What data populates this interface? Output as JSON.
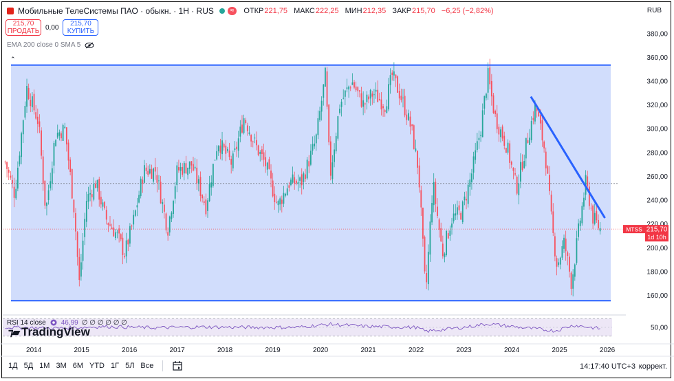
{
  "header": {
    "symbol_title": "Мобильные ТелеСистемы ПАО · обыкн. · 1Н · RUS",
    "live_badge": "≈",
    "ohlc": {
      "open_label": "ОТКР",
      "open": "221,75",
      "high_label": "МАКС",
      "high": "222,25",
      "low_label": "МИН",
      "low": "212,35",
      "close_label": "ЗАКР",
      "close": "215,70",
      "change": "−6,25 (−2,82%)"
    },
    "currency": "RUB"
  },
  "trade": {
    "sell_price": "215,70",
    "sell_label": "ПРОДАТЬ",
    "spread": "0,00",
    "buy_price": "215,70",
    "buy_label": "КУПИТЬ"
  },
  "indicators": {
    "ema_label": "EMA 200 close 0 SMA 5",
    "rsi_label": "RSI 14 close",
    "rsi_value": "46,99",
    "rsi_extra": "∅ ∅ ∅ ∅ ∅ ∅"
  },
  "logo_text": "TradingView",
  "bottom_bar": {
    "ranges": [
      "1Д",
      "5Д",
      "1М",
      "3М",
      "6М",
      "YTD",
      "1Г",
      "5Л",
      "Все"
    ],
    "time": "14:17:40 UTC+3",
    "adjust_label": "коррект."
  },
  "price_tag": {
    "symbol": "MTSS",
    "price": "215,70",
    "countdown": "1d 10h"
  },
  "colors": {
    "up": "#26a69a",
    "down": "#f7525f",
    "channel_fill": "#c9d7fb",
    "channel_line": "#2962ff",
    "rsi_line": "#7e57c2",
    "rsi_band": "#ede7f6"
  },
  "chart_data": {
    "type": "candlestick",
    "title": "Мобильные ТелеСистемы ПАО · обыкн. · 1Н · RUS",
    "x_axis_labels": [
      "2014",
      "2015",
      "2016",
      "2017",
      "2018",
      "2019",
      "2020",
      "2021",
      "2022",
      "2023",
      "2024",
      "2025",
      "2026"
    ],
    "y_axis_ticks": [
      160,
      180,
      200,
      220,
      240,
      260,
      280,
      300,
      320,
      340,
      360,
      380
    ],
    "ylim": [
      147,
      392
    ],
    "xlim": [
      2013.35,
      2026.1
    ],
    "series": [
      {
        "name": "MTSS",
        "approx_close_path": [
          {
            "x": 2013.4,
            "y": 272
          },
          {
            "x": 2013.6,
            "y": 245
          },
          {
            "x": 2013.85,
            "y": 335
          },
          {
            "x": 2014.1,
            "y": 305
          },
          {
            "x": 2014.25,
            "y": 230
          },
          {
            "x": 2014.45,
            "y": 295
          },
          {
            "x": 2014.65,
            "y": 300
          },
          {
            "x": 2014.85,
            "y": 230
          },
          {
            "x": 2014.95,
            "y": 170
          },
          {
            "x": 2015.1,
            "y": 240
          },
          {
            "x": 2015.3,
            "y": 255
          },
          {
            "x": 2015.5,
            "y": 225
          },
          {
            "x": 2015.75,
            "y": 210
          },
          {
            "x": 2015.9,
            "y": 195
          },
          {
            "x": 2016.1,
            "y": 225
          },
          {
            "x": 2016.3,
            "y": 265
          },
          {
            "x": 2016.55,
            "y": 265
          },
          {
            "x": 2016.8,
            "y": 215
          },
          {
            "x": 2017.0,
            "y": 265
          },
          {
            "x": 2017.3,
            "y": 270
          },
          {
            "x": 2017.6,
            "y": 235
          },
          {
            "x": 2017.85,
            "y": 290
          },
          {
            "x": 2018.15,
            "y": 270
          },
          {
            "x": 2018.4,
            "y": 310
          },
          {
            "x": 2018.65,
            "y": 285
          },
          {
            "x": 2018.85,
            "y": 270
          },
          {
            "x": 2019.1,
            "y": 235
          },
          {
            "x": 2019.35,
            "y": 255
          },
          {
            "x": 2019.6,
            "y": 255
          },
          {
            "x": 2019.9,
            "y": 290
          },
          {
            "x": 2020.1,
            "y": 345
          },
          {
            "x": 2020.2,
            "y": 260
          },
          {
            "x": 2020.4,
            "y": 320
          },
          {
            "x": 2020.65,
            "y": 340
          },
          {
            "x": 2020.9,
            "y": 320
          },
          {
            "x": 2021.1,
            "y": 330
          },
          {
            "x": 2021.35,
            "y": 320
          },
          {
            "x": 2021.5,
            "y": 345
          },
          {
            "x": 2021.7,
            "y": 325
          },
          {
            "x": 2021.9,
            "y": 300
          },
          {
            "x": 2022.05,
            "y": 265
          },
          {
            "x": 2022.2,
            "y": 160
          },
          {
            "x": 2022.35,
            "y": 255
          },
          {
            "x": 2022.55,
            "y": 195
          },
          {
            "x": 2022.75,
            "y": 225
          },
          {
            "x": 2022.95,
            "y": 230
          },
          {
            "x": 2023.15,
            "y": 260
          },
          {
            "x": 2023.35,
            "y": 300
          },
          {
            "x": 2023.5,
            "y": 345
          },
          {
            "x": 2023.65,
            "y": 310
          },
          {
            "x": 2023.9,
            "y": 285
          },
          {
            "x": 2024.1,
            "y": 250
          },
          {
            "x": 2024.35,
            "y": 295
          },
          {
            "x": 2024.5,
            "y": 320
          },
          {
            "x": 2024.7,
            "y": 280
          },
          {
            "x": 2024.85,
            "y": 215
          },
          {
            "x": 2024.95,
            "y": 185
          },
          {
            "x": 2025.1,
            "y": 205
          },
          {
            "x": 2025.25,
            "y": 170
          },
          {
            "x": 2025.4,
            "y": 215
          },
          {
            "x": 2025.55,
            "y": 255
          },
          {
            "x": 2025.7,
            "y": 225
          },
          {
            "x": 2025.85,
            "y": 215.7
          }
        ]
      },
      {
        "name": "RSI 14",
        "approx_levels": [
          {
            "x": 2013.4,
            "y": 50
          },
          {
            "x": 2014.5,
            "y": 48
          },
          {
            "x": 2015.5,
            "y": 52
          },
          {
            "x": 2016.5,
            "y": 49
          },
          {
            "x": 2017.5,
            "y": 51
          },
          {
            "x": 2018.5,
            "y": 50
          },
          {
            "x": 2019.5,
            "y": 50
          },
          {
            "x": 2020.2,
            "y": 57
          },
          {
            "x": 2021.0,
            "y": 52
          },
          {
            "x": 2022.0,
            "y": 50
          },
          {
            "x": 2022.2,
            "y": 41
          },
          {
            "x": 2023.0,
            "y": 50
          },
          {
            "x": 2023.5,
            "y": 58
          },
          {
            "x": 2024.0,
            "y": 52
          },
          {
            "x": 2024.9,
            "y": 42
          },
          {
            "x": 2025.3,
            "y": 55
          },
          {
            "x": 2025.85,
            "y": 46.99
          }
        ]
      }
    ],
    "drawings": {
      "channel_top": 353.5,
      "channel_bottom": 155.5,
      "dotted_level": 254,
      "current_price_level": 215.7,
      "trendline": [
        {
          "x": 2024.4,
          "y": 327
        },
        {
          "x": 2025.95,
          "y": 225
        }
      ]
    },
    "rsi_levels": [
      30,
      50,
      70
    ],
    "rsi_axis_label": "50,00",
    "grid": false
  }
}
